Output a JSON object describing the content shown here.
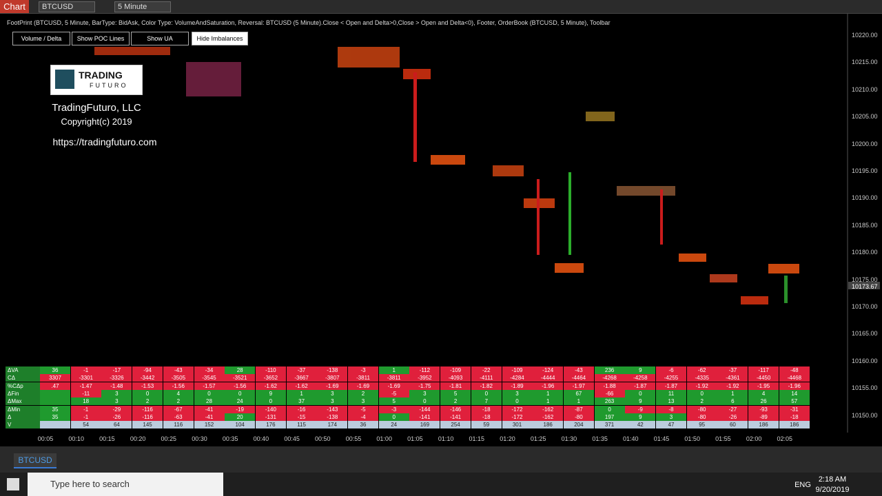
{
  "toolbar": {
    "chart_label": "Chart",
    "instrument": "BTCUSD",
    "interval": "5 Minute"
  },
  "chart": {
    "title": "FootPrint (BTCUSD, 5 Minute, BarType: BidAsk, Color Type: VolumeAndSaturation, Reversal: BTCUSD (5 Minute).Close < Open and Delta>0,Close > Open and Delta<0), Footer, OrderBook (BTCUSD, 5 Minute), Toolbar",
    "buttons": [
      "Volume / Delta",
      "Show POC Lines",
      "Show UA",
      "Hide Imbalances"
    ],
    "logo": {
      "name": "TRADING",
      "sub": "FUTURO"
    },
    "company": "TradingFuturo, LLC",
    "copyright": "Copyright(c) 2019",
    "url": "https://tradingfuturo.com",
    "price_labels": [
      "10220.00",
      "10215.00",
      "10210.00",
      "10205.00",
      "10200.00",
      "10195.00",
      "10190.00",
      "10185.00",
      "10180.00",
      "10175.00",
      "10170.00",
      "10165.00",
      "10160.00",
      "10155.00",
      "10150.00"
    ],
    "current_price": "10173.67",
    "time_labels": [
      "00:05",
      "00:10",
      "00:15",
      "00:20",
      "00:25",
      "00:30",
      "00:35",
      "00:40",
      "00:45",
      "00:50",
      "00:55",
      "01:00",
      "01:05",
      "01:10",
      "01:15",
      "01:20",
      "01:25",
      "01:30",
      "01:35",
      "01:40",
      "01:45",
      "01:50",
      "01:55",
      "02:00",
      "02:05"
    ]
  },
  "footer": {
    "row_labels": [
      "ΔVA",
      "CΔ",
      "%CΔp",
      "ΔFin",
      "ΔMax",
      "ΔMin",
      "Δ",
      "V"
    ],
    "rows": [
      [
        "36",
        "-1",
        "-17",
        "-94",
        "-43",
        "-34",
        "28",
        "-110",
        "-37",
        "-138",
        "-3",
        "1",
        "-112",
        "-109",
        "-22",
        "-109",
        "-124",
        "-43",
        "236",
        "9",
        "-6",
        "-62",
        "-37",
        "-117",
        "-48"
      ],
      [
        "3307",
        "-3301",
        "-3326",
        "-3442",
        "-3505",
        "-3545",
        "-3521",
        "-3652",
        "-3667",
        "-3807",
        "-3811",
        "-3811",
        "-3952",
        "-4093",
        "-4111",
        "-4284",
        "-4444",
        "-4464",
        "-4268",
        "-4258",
        "-4255",
        "-4335",
        "-4361",
        "-4450",
        "-4468"
      ],
      [
        ".47",
        "-1.47",
        "-1.48",
        "-1.53",
        "-1.56",
        "-1.57",
        "-1.56",
        "-1.62",
        "-1.62",
        "-1.69",
        "-1.69",
        "-1.69",
        "-1.75",
        "-1.81",
        "-1.82",
        "-1.89",
        "-1.96",
        "-1.97",
        "-1.88",
        "-1.87",
        "-1.87",
        "-1.92",
        "-1.92",
        "-1.95",
        "-1.96"
      ],
      [
        null,
        "-11",
        "3",
        "0",
        "4",
        "0",
        "0",
        "9",
        "1",
        "3",
        "2",
        "-5",
        "3",
        "5",
        "0",
        "3",
        "1",
        "67",
        "-66",
        "0",
        "11",
        "0",
        "1",
        "4",
        "14"
      ],
      [
        null,
        "18",
        "3",
        "2",
        "2",
        "28",
        "24",
        "0",
        "37",
        "3",
        "3",
        "5",
        "0",
        "2",
        "7",
        "0",
        "1",
        "1",
        "263",
        "9",
        "13",
        "2",
        "6",
        "26",
        "57"
      ],
      [
        "35",
        "-1",
        "-29",
        "-116",
        "-67",
        "-41",
        "-19",
        "-140",
        "-16",
        "-143",
        "-5",
        "-3",
        "-144",
        "-146",
        "-18",
        "-172",
        "-162",
        "-87",
        "0",
        "-9",
        "-8",
        "-80",
        "-27",
        "-93",
        "-31"
      ],
      [
        "35",
        "-1",
        "-26",
        "-116",
        "-63",
        "-41",
        "20",
        "-131",
        "-15",
        "-138",
        "-4",
        "0",
        "-141",
        "-141",
        "-18",
        "-172",
        "-162",
        "-80",
        "197",
        "9",
        "3",
        "-80",
        "-26",
        "-89",
        "-18"
      ],
      [
        null,
        "54",
        "64",
        "145",
        "116",
        "152",
        "104",
        "176",
        "115",
        "174",
        "36",
        "24",
        "169",
        "254",
        "59",
        "301",
        "186",
        "204",
        "371",
        "42",
        "47",
        "95",
        "60",
        "186",
        "186"
      ]
    ]
  },
  "tabs": {
    "active": "BTCUSD"
  },
  "taskbar": {
    "search": "Type here to search",
    "lang": "ENG",
    "time": "2:18 AM",
    "date": "9/20/2019"
  }
}
